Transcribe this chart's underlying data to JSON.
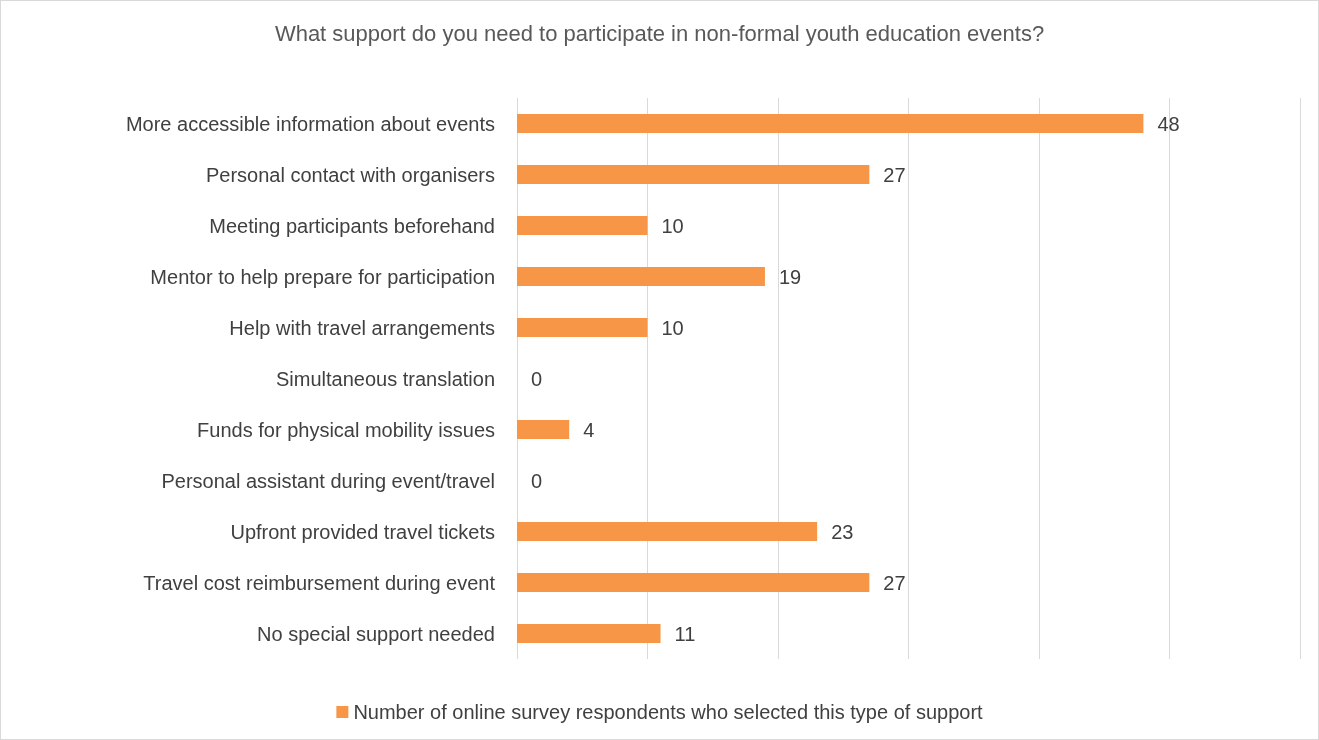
{
  "chart_data": {
    "type": "bar",
    "orientation": "horizontal",
    "title": "What support do you need to participate in non-formal youth education events?",
    "categories": [
      "More accessible information about events",
      "Personal contact with organisers",
      "Meeting participants beforehand",
      "Mentor to help prepare for participation",
      "Help with travel arrangements",
      "Simultaneous translation",
      "Funds for physical mobility issues",
      "Personal assistant during event/travel",
      "Upfront provided travel tickets",
      "Travel cost reimbursement during event",
      "No special support needed"
    ],
    "series": [
      {
        "name": "Number of online survey respondents who selected this type of support",
        "color": "#f79646",
        "values": [
          48,
          27,
          10,
          19,
          10,
          0,
          4,
          0,
          23,
          27,
          11
        ]
      }
    ],
    "xlim": [
      0,
      60
    ],
    "xticks": [
      {
        "value": 0,
        "label": null
      },
      {
        "value": 10,
        "label": null
      },
      {
        "value": 20,
        "label": null
      },
      {
        "value": 30,
        "label": null
      },
      {
        "value": 40,
        "label": null
      },
      {
        "value": 50,
        "label": null
      },
      {
        "value": 60,
        "label": null
      }
    ],
    "grid": "x",
    "legend": "bottom",
    "data_labels": true,
    "tick_labels": "y"
  }
}
